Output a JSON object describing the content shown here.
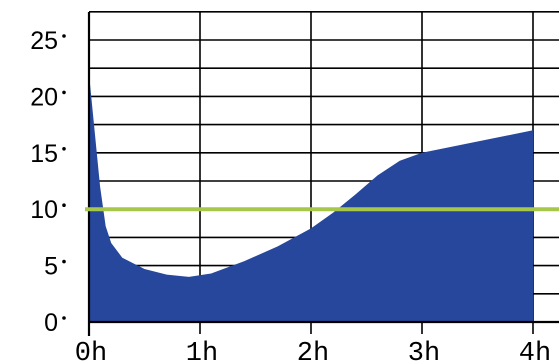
{
  "chart_data": {
    "type": "area",
    "title": "",
    "xlabel": "",
    "ylabel": "",
    "x": [
      0,
      0.05,
      0.1,
      0.15,
      0.2,
      0.3,
      0.5,
      0.7,
      0.9,
      1.1,
      1.4,
      1.7,
      2.0,
      2.2,
      2.4,
      2.6,
      2.8,
      3.0,
      3.3,
      3.6,
      4.0
    ],
    "series": [
      {
        "values": [
          22,
          17,
          12,
          8.5,
          7,
          5.7,
          4.7,
          4.2,
          4.0,
          4.3,
          5.4,
          6.7,
          8.3,
          9.7,
          11.3,
          13.0,
          14.3,
          15.0,
          15.6,
          16.2,
          17.0
        ],
        "color": "#26479b"
      }
    ],
    "xticks": [
      "0h",
      "1h",
      "2h",
      "3h",
      "4h"
    ],
    "yticks": [
      "0",
      "5",
      "10",
      "15",
      "20",
      "25"
    ],
    "xlim": [
      0,
      4
    ],
    "ylim": [
      0,
      25
    ],
    "reference_line": {
      "y": 10,
      "color": "#a6c74a"
    },
    "grid": true,
    "minor_grid_step": 2.5
  }
}
